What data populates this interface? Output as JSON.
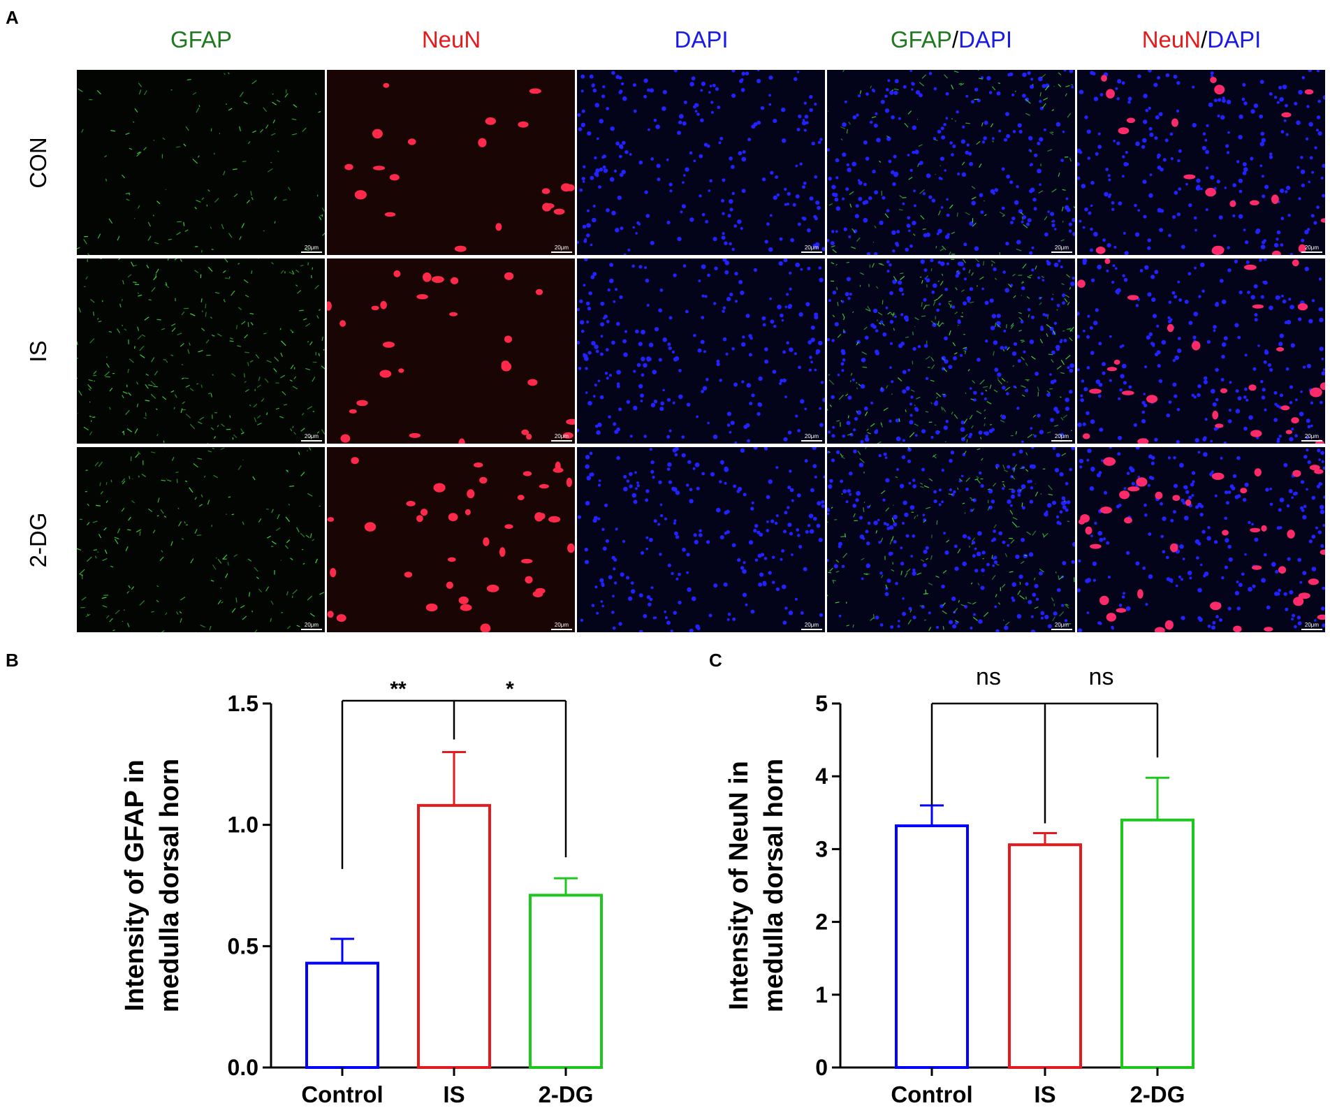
{
  "figure": {
    "panel_labels": [
      "A",
      "B",
      "C"
    ],
    "columns": [
      {
        "parts": [
          {
            "text": "GFAP",
            "color": "#1f7a1f"
          }
        ]
      },
      {
        "parts": [
          {
            "text": "NeuN",
            "color": "#e41a1c"
          }
        ]
      },
      {
        "parts": [
          {
            "text": "DAPI",
            "color": "#1a1ae6"
          }
        ]
      },
      {
        "parts": [
          {
            "text": "GFAP",
            "color": "#1f7a1f"
          },
          {
            "text": "/",
            "color": "#000000"
          },
          {
            "text": "DAPI",
            "color": "#1a1ae6"
          }
        ]
      },
      {
        "parts": [
          {
            "text": "NeuN",
            "color": "#e41a1c"
          },
          {
            "text": "/",
            "color": "#000000"
          },
          {
            "text": "DAPI",
            "color": "#1a1ae6"
          }
        ]
      }
    ],
    "rows": [
      "CON",
      "IS",
      "2-DG"
    ],
    "scale_bar_label": "20μm"
  },
  "chart_data": [
    {
      "type": "bar",
      "panel": "B",
      "categories": [
        "Control",
        "IS",
        "2-DG"
      ],
      "values": [
        0.43,
        1.08,
        0.71
      ],
      "errors": [
        0.1,
        0.22,
        0.07
      ],
      "bar_colors": [
        "#0000ff",
        "#e41a1c",
        "#1ec71e"
      ],
      "ylabel_lines": [
        "Intensity of GFAP in",
        "medulla dorsal horn"
      ],
      "ylim": [
        0,
        1.5
      ],
      "yticks": [
        "0.0",
        "0.5",
        "1.0",
        "1.5"
      ],
      "ytick_values": [
        0,
        0.5,
        1.0,
        1.5
      ],
      "significance": [
        {
          "label": "**",
          "from": "IS",
          "to": "Control"
        },
        {
          "label": "*",
          "from": "IS",
          "to": "2-DG"
        }
      ],
      "grid": false
    },
    {
      "type": "bar",
      "panel": "C",
      "categories": [
        "Control",
        "IS",
        "2-DG"
      ],
      "values": [
        3.32,
        3.06,
        3.4
      ],
      "errors": [
        0.28,
        0.16,
        0.58
      ],
      "bar_colors": [
        "#0000ff",
        "#e41a1c",
        "#1ec71e"
      ],
      "ylabel_lines": [
        "Intensity of NeuN in",
        "medulla dorsal horn"
      ],
      "ylim": [
        0,
        5
      ],
      "yticks": [
        "0",
        "1",
        "2",
        "3",
        "4",
        "5"
      ],
      "ytick_values": [
        0,
        1,
        2,
        3,
        4,
        5
      ],
      "significance": [
        {
          "label": "ns",
          "from": "IS",
          "to": "Control"
        },
        {
          "label": "ns",
          "from": "IS",
          "to": "2-DG"
        }
      ],
      "grid": false
    }
  ]
}
